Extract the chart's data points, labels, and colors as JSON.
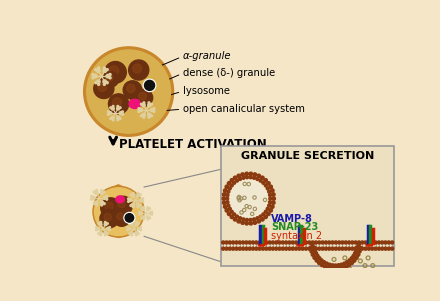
{
  "bg_color": "#f5e6c8",
  "title_activation": "PLATELET ACTIVATION",
  "title_secretion": "GRANULE SECRETION",
  "label_alpha": "α-granule",
  "label_dense": "dense (δ-) granule",
  "label_lysosome": "lysosome",
  "label_ocs": "open canalicular system",
  "label_vamp": "VAMP-8",
  "label_snap": "SNAP-23",
  "label_syntaxin": "syntaxin 2",
  "color_vamp": "#1a1aaa",
  "color_snap": "#228B22",
  "color_syntaxin": "#CC2200",
  "color_alpha_granule": "#6B3010",
  "color_alpha_light": "#8B4513",
  "color_dense_granule": "#111111",
  "color_lysosome": "#EE1177",
  "color_platelet_body": "#D9B050",
  "color_platelet_border": "#C8872A",
  "color_platelet_inner": "#E8C060",
  "color_membrane_head": "#8B3A10",
  "color_membrane_tail": "#909090",
  "color_membrane_band": "#b8b8b8",
  "color_ocs": "#e0d0a0",
  "box_bg": "#ede0c0",
  "box_border": "#999999",
  "secreted_dot": "#c8b878"
}
